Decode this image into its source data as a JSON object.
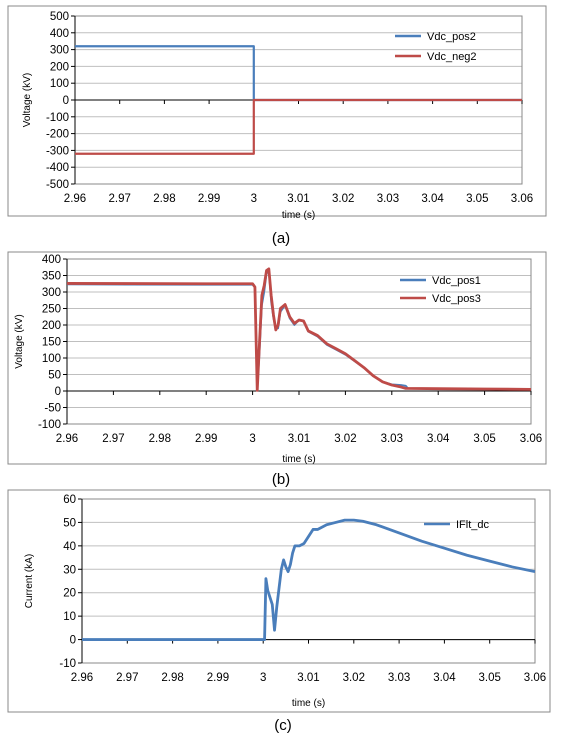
{
  "colors": {
    "blue": "#4a7ebb",
    "red": "#be4b48",
    "gridline": "#bfbfbf",
    "frame": "#888888"
  },
  "chart_data": [
    {
      "type": "line",
      "caption": "(a)",
      "xlabel": "time (s)",
      "ylabel": "Voltage (kV)",
      "xlim": [
        2.96,
        3.06
      ],
      "ylim": [
        -500,
        500
      ],
      "xticks": [
        "2.96",
        "2.97",
        "2.98",
        "2.99",
        "3",
        "3.01",
        "3.02",
        "3.03",
        "3.04",
        "3.05",
        "3.06"
      ],
      "yticks": [
        "-500",
        "-400",
        "-300",
        "-200",
        "-100",
        "0",
        "100",
        "200",
        "300",
        "400",
        "500"
      ],
      "grid": "horizontal",
      "legend_position": "top-right",
      "series": [
        {
          "name": "Vdc_pos2",
          "color": "#4a7ebb",
          "width": 2.2,
          "points": [
            [
              2.96,
              320
            ],
            [
              3.0,
              320
            ],
            [
              3.0,
              0
            ],
            [
              3.06,
              0
            ]
          ]
        },
        {
          "name": "Vdc_neg2",
          "color": "#be4b48",
          "width": 2.2,
          "points": [
            [
              2.96,
              -320
            ],
            [
              3.0,
              -320
            ],
            [
              3.0,
              0
            ],
            [
              3.06,
              0
            ]
          ]
        }
      ]
    },
    {
      "type": "line",
      "caption": "(b)",
      "xlabel": "time (s)",
      "ylabel": "Voltage (kV)",
      "xlim": [
        2.96,
        3.06
      ],
      "ylim": [
        -100,
        400
      ],
      "xticks": [
        "2.96",
        "2.97",
        "2.98",
        "2.99",
        "3",
        "3.01",
        "3.02",
        "3.03",
        "3.04",
        "3.05",
        "3.06"
      ],
      "yticks": [
        "-100",
        "-50",
        "0",
        "50",
        "100",
        "150",
        "200",
        "250",
        "300",
        "350",
        "400"
      ],
      "grid": "horizontal",
      "legend_position": "top-right",
      "series": [
        {
          "name": "Vdc_pos1",
          "color": "#4a7ebb",
          "width": 1.8,
          "points": [
            [
              2.96,
              323
            ],
            [
              2.99,
              322
            ],
            [
              3.0,
              322
            ],
            [
              3.0005,
              315
            ],
            [
              3.001,
              5
            ],
            [
              3.0015,
              120
            ],
            [
              3.002,
              260
            ],
            [
              3.0025,
              300
            ],
            [
              3.003,
              355
            ],
            [
              3.0035,
              365
            ],
            [
              3.004,
              270
            ],
            [
              3.0045,
              220
            ],
            [
              3.005,
              190
            ],
            [
              3.0055,
              190
            ],
            [
              3.006,
              240
            ],
            [
              3.007,
              260
            ],
            [
              3.008,
              220
            ],
            [
              3.009,
              200
            ],
            [
              3.01,
              215
            ],
            [
              3.011,
              210
            ],
            [
              3.012,
              180
            ],
            [
              3.014,
              165
            ],
            [
              3.016,
              140
            ],
            [
              3.018,
              125
            ],
            [
              3.02,
              110
            ],
            [
              3.022,
              90
            ],
            [
              3.024,
              70
            ],
            [
              3.026,
              45
            ],
            [
              3.028,
              28
            ],
            [
              3.03,
              20
            ],
            [
              3.032,
              18
            ],
            [
              3.033,
              16
            ],
            [
              3.0335,
              8
            ],
            [
              3.04,
              7
            ],
            [
              3.05,
              6
            ],
            [
              3.06,
              5
            ]
          ]
        },
        {
          "name": "Vdc_pos3",
          "color": "#be4b48",
          "width": 2.8,
          "points": [
            [
              2.96,
              326
            ],
            [
              2.99,
              325
            ],
            [
              3.0,
              325
            ],
            [
              3.0005,
              315
            ],
            [
              3.001,
              2
            ],
            [
              3.0015,
              150
            ],
            [
              3.002,
              290
            ],
            [
              3.0025,
              320
            ],
            [
              3.003,
              365
            ],
            [
              3.0035,
              370
            ],
            [
              3.004,
              290
            ],
            [
              3.0045,
              230
            ],
            [
              3.005,
              185
            ],
            [
              3.0055,
              200
            ],
            [
              3.006,
              250
            ],
            [
              3.007,
              262
            ],
            [
              3.008,
              225
            ],
            [
              3.009,
              205
            ],
            [
              3.01,
              215
            ],
            [
              3.011,
              212
            ],
            [
              3.012,
              182
            ],
            [
              3.014,
              168
            ],
            [
              3.016,
              143
            ],
            [
              3.018,
              128
            ],
            [
              3.02,
              113
            ],
            [
              3.022,
              92
            ],
            [
              3.024,
              71
            ],
            [
              3.026,
              46
            ],
            [
              3.028,
              28
            ],
            [
              3.03,
              18
            ],
            [
              3.032,
              12
            ],
            [
              3.033,
              8
            ],
            [
              3.04,
              7
            ],
            [
              3.05,
              6
            ],
            [
              3.06,
              5
            ]
          ]
        }
      ]
    },
    {
      "type": "line",
      "caption": "(c)",
      "xlabel": "time (s)",
      "ylabel": "Current (kA)",
      "xlim": [
        2.96,
        3.06
      ],
      "ylim": [
        -10,
        60
      ],
      "xticks": [
        "2.96",
        "2.97",
        "2.98",
        "2.99",
        "3",
        "3.01",
        "3.02",
        "3.03",
        "3.04",
        "3.05",
        "3.06"
      ],
      "yticks": [
        "-10",
        "0",
        "10",
        "20",
        "30",
        "40",
        "50",
        "60"
      ],
      "grid": "horizontal",
      "legend_position": "top-right",
      "series": [
        {
          "name": "IFlt_dc",
          "color": "#4a7ebb",
          "width": 2.8,
          "points": [
            [
              2.96,
              0
            ],
            [
              3.0,
              0
            ],
            [
              3.0003,
              0
            ],
            [
              3.0006,
              26
            ],
            [
              3.001,
              21
            ],
            [
              3.0015,
              18
            ],
            [
              3.002,
              15
            ],
            [
              3.0025,
              4
            ],
            [
              3.003,
              14
            ],
            [
              3.0035,
              22
            ],
            [
              3.004,
              30
            ],
            [
              3.0045,
              34
            ],
            [
              3.005,
              31
            ],
            [
              3.0055,
              29
            ],
            [
              3.006,
              32
            ],
            [
              3.0065,
              37
            ],
            [
              3.007,
              40
            ],
            [
              3.008,
              40
            ],
            [
              3.009,
              41
            ],
            [
              3.01,
              44
            ],
            [
              3.011,
              47
            ],
            [
              3.012,
              47
            ],
            [
              3.014,
              49
            ],
            [
              3.016,
              50
            ],
            [
              3.018,
              51
            ],
            [
              3.02,
              51
            ],
            [
              3.022,
              50.5
            ],
            [
              3.025,
              49
            ],
            [
              3.03,
              45.5
            ],
            [
              3.035,
              42
            ],
            [
              3.04,
              39
            ],
            [
              3.045,
              36
            ],
            [
              3.05,
              33.5
            ],
            [
              3.055,
              31
            ],
            [
              3.06,
              29
            ]
          ]
        }
      ]
    }
  ]
}
